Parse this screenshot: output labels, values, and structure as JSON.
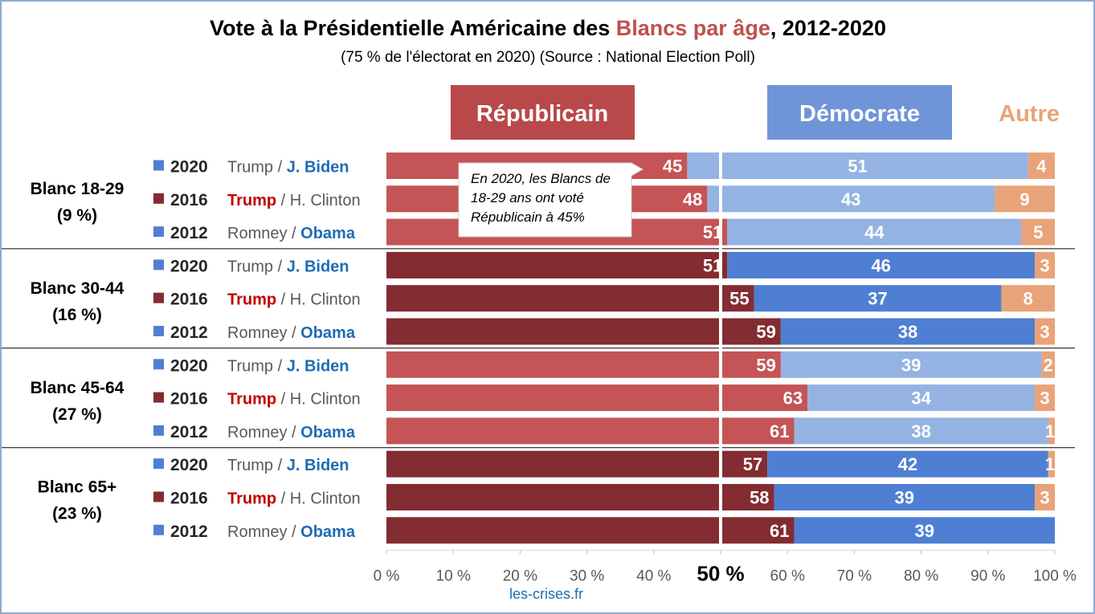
{
  "colors": {
    "rep_light": "#c45456",
    "rep_dark": "#832c31",
    "dem_light": "#94b3e3",
    "dem_dark": "#4e7fd3",
    "other": "#e9a378",
    "legend_rep": "#b9484a",
    "legend_dem": "#6f95d8",
    "title_accent": "#c0504d",
    "trump_red": "#c00000",
    "biden_blue": "#1f6bb5",
    "label_gray": "#595959"
  },
  "header": {
    "title_part1": "Vote à la Présidentielle Américaine des ",
    "title_accent": "Blancs par âge",
    "title_part2": ", 2012-2020",
    "subtitle": "(75 % de l'électorat en 2020) (Source : National Election Poll)"
  },
  "legend": {
    "rep": "Républicain",
    "dem": "Démocrate",
    "other": "Autre"
  },
  "annotation": {
    "lines": [
      "En 2020, les Blancs de",
      "18-29 ans ont voté",
      "Républicain à 45%"
    ]
  },
  "footer": {
    "source": "les-crises.fr"
  },
  "chart_data": {
    "type": "bar",
    "orientation": "horizontal-stacked",
    "xlim": [
      0,
      100
    ],
    "xticks": [
      "0 %",
      "10 %",
      "20 %",
      "30 %",
      "40 %",
      "50 %",
      "60 %",
      "70 %",
      "80 %",
      "90 %",
      "100 %"
    ],
    "reference_line": 50,
    "series_names": [
      "Républicain",
      "Démocrate",
      "Autre"
    ],
    "groups": [
      {
        "label": "Blanc 18-29",
        "share": "(9 %)",
        "shade": "light",
        "rows": [
          {
            "year": "2020",
            "rep_cand": "Trump",
            "dem_cand": "J. Biden",
            "winner": "dem",
            "rep": 45,
            "dem": 51,
            "other": 4
          },
          {
            "year": "2016",
            "rep_cand": "Trump",
            "dem_cand": "H. Clinton",
            "winner": "rep",
            "rep": 48,
            "dem": 43,
            "other": 9
          },
          {
            "year": "2012",
            "rep_cand": "Romney",
            "dem_cand": "Obama",
            "winner": "dem",
            "rep": 51,
            "dem": 44,
            "other": 5
          }
        ]
      },
      {
        "label": "Blanc 30-44",
        "share": "(16 %)",
        "shade": "dark",
        "rows": [
          {
            "year": "2020",
            "rep_cand": "Trump",
            "dem_cand": "J. Biden",
            "winner": "dem",
            "rep": 51,
            "dem": 46,
            "other": 3
          },
          {
            "year": "2016",
            "rep_cand": "Trump",
            "dem_cand": "H. Clinton",
            "winner": "rep",
            "rep": 55,
            "dem": 37,
            "other": 8
          },
          {
            "year": "2012",
            "rep_cand": "Romney",
            "dem_cand": "Obama",
            "winner": "dem",
            "rep": 59,
            "dem": 38,
            "other": 3
          }
        ]
      },
      {
        "label": "Blanc 45-64",
        "share": "(27 %)",
        "shade": "light",
        "rows": [
          {
            "year": "2020",
            "rep_cand": "Trump",
            "dem_cand": "J. Biden",
            "winner": "dem",
            "rep": 59,
            "dem": 39,
            "other": 2
          },
          {
            "year": "2016",
            "rep_cand": "Trump",
            "dem_cand": "H. Clinton",
            "winner": "rep",
            "rep": 63,
            "dem": 34,
            "other": 3
          },
          {
            "year": "2012",
            "rep_cand": "Romney",
            "dem_cand": "Obama",
            "winner": "dem",
            "rep": 61,
            "dem": 38,
            "other": 1
          }
        ]
      },
      {
        "label": "Blanc 65+",
        "share": "(23 %)",
        "shade": "dark",
        "rows": [
          {
            "year": "2020",
            "rep_cand": "Trump",
            "dem_cand": "J. Biden",
            "winner": "dem",
            "rep": 57,
            "dem": 42,
            "other": 1
          },
          {
            "year": "2016",
            "rep_cand": "Trump",
            "dem_cand": "H. Clinton",
            "winner": "rep",
            "rep": 58,
            "dem": 39,
            "other": 3
          },
          {
            "year": "2012",
            "rep_cand": "Romney",
            "dem_cand": "Obama",
            "winner": "dem",
            "rep": 61,
            "dem": 39,
            "other": 0
          }
        ]
      }
    ]
  }
}
